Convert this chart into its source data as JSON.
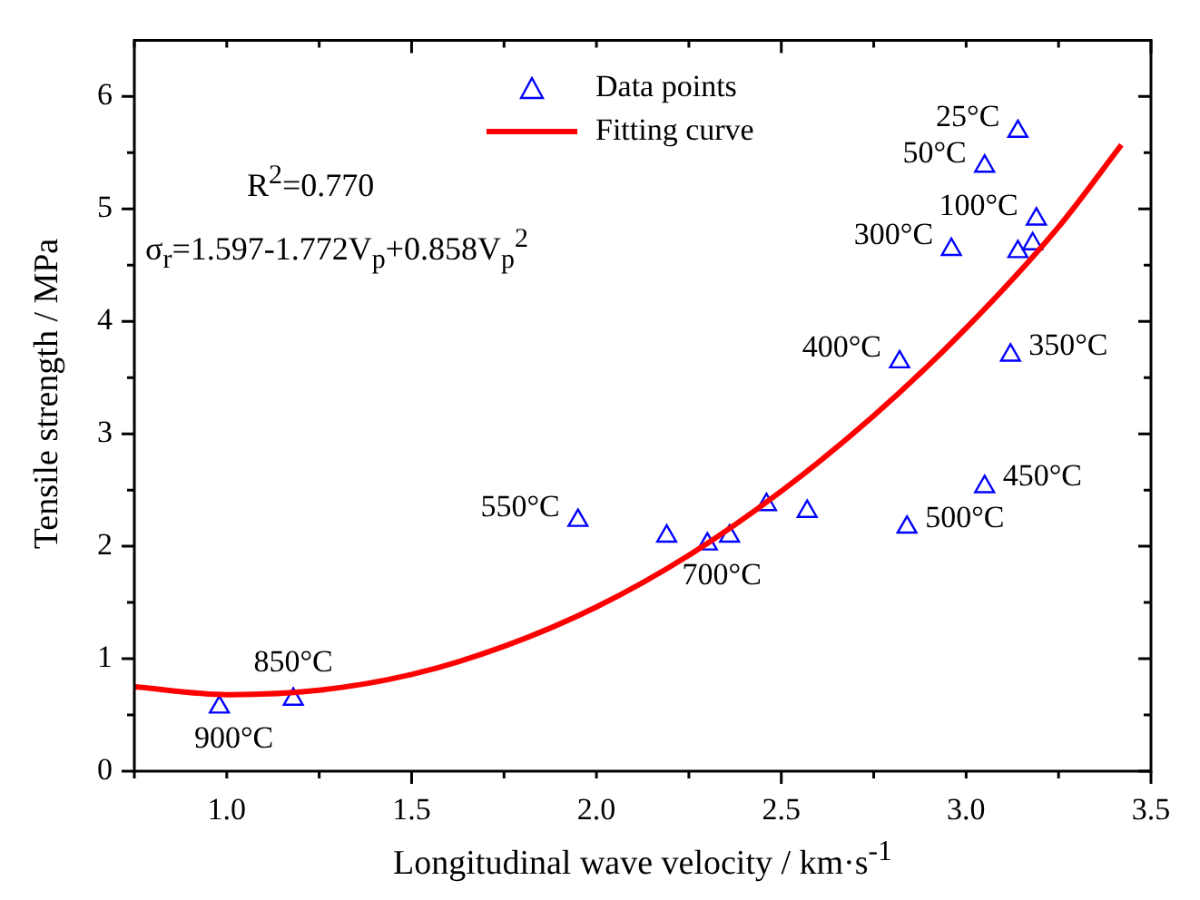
{
  "chart_data": {
    "type": "scatter",
    "xlabel": "Longitudinal wave velocity / km·s$^{-1}$",
    "ylabel": "Tensile strength / MPa",
    "xlim": [
      0.75,
      3.5
    ],
    "ylim": [
      0,
      6.5
    ],
    "xticks": [
      {
        "value": 0.75,
        "label": null
      },
      {
        "value": 1,
        "label": "1.0"
      },
      {
        "value": 1.25,
        "label": null
      },
      1.5,
      {
        "value": 1.75,
        "label": null
      },
      {
        "value": 2,
        "label": "2.0"
      },
      {
        "value": 2.25,
        "label": null
      },
      2.5,
      {
        "value": 2.75,
        "label": null
      },
      {
        "value": 3,
        "label": "3.0"
      },
      {
        "value": 3.25,
        "label": null
      },
      3.5
    ],
    "yticks": [
      0,
      {
        "value": 0.5,
        "label": null
      },
      1,
      {
        "value": 1.5,
        "label": null
      },
      2,
      {
        "value": 2.5,
        "label": null
      },
      3,
      {
        "value": 3.5,
        "label": null
      },
      4,
      {
        "value": 4.5,
        "label": null
      },
      5,
      {
        "value": 5.5,
        "label": null
      },
      6
    ],
    "grid": false,
    "legend": "top",
    "line_style": "solid",
    "series": [
      {
        "name": "Data points",
        "marker": "triangle",
        "color": "#0000ff",
        "x": [
          0.98,
          1.18,
          1.95,
          2.19,
          2.3,
          2.36,
          2.46,
          2.57,
          2.84,
          3.05,
          3.14,
          3.05,
          3.19,
          3.18,
          3.14,
          2.96,
          2.82,
          3.12
        ],
        "values": [
          0.57,
          0.64,
          2.23,
          2.09,
          2.02,
          2.09,
          2.37,
          2.31,
          2.17,
          2.53,
          5.69,
          5.38,
          4.91,
          4.69,
          4.62,
          4.64,
          3.64,
          3.7
        ]
      },
      {
        "name": "Fitting curve",
        "type": "line",
        "marker": "none",
        "color": "#ff0000",
        "x": [
          0.75,
          1.0,
          1.25,
          1.5,
          1.75,
          2.0,
          2.25,
          2.5,
          2.75,
          3.0,
          3.25,
          3.42
        ],
        "values": [
          0.75,
          0.68,
          0.72,
          0.86,
          1.11,
          1.46,
          1.92,
          2.49,
          3.16,
          3.94,
          4.84,
          5.57
        ]
      }
    ],
    "annotations": [
      "R$^{2}$=0.770",
      "σ$_{r}$=1.597-1.772V$_{p}$+0.858V$_{p}$$^{2}$",
      {
        "text": "25°C",
        "x": 3.14,
        "y": 5.69
      },
      {
        "text": "50°C",
        "x": 3.05,
        "y": 5.38
      },
      {
        "text": "100°C",
        "x": 3.19,
        "y": 4.91
      },
      {
        "text": "300°C",
        "x": 2.96,
        "y": 4.64
      },
      {
        "text": "400°C",
        "x": 2.82,
        "y": 3.64
      },
      {
        "text": "350°C",
        "x": 3.12,
        "y": 3.7
      },
      {
        "text": "450°C",
        "x": 3.05,
        "y": 2.53
      },
      {
        "text": "500°C",
        "x": 2.84,
        "y": 2.17
      },
      {
        "text": "700°C",
        "x": 2.3,
        "y": 2.02
      },
      {
        "text": "550°C",
        "x": 1.95,
        "y": 2.23
      },
      {
        "text": "850°C",
        "x": 1.18,
        "y": 0.64
      },
      {
        "text": "900°C",
        "x": 0.98,
        "y": 0.57
      }
    ]
  }
}
